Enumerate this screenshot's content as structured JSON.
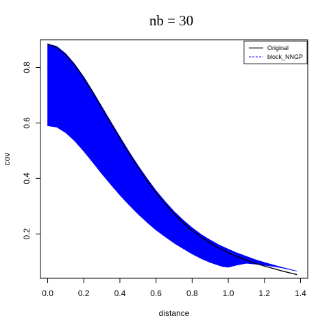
{
  "chart_data": {
    "type": "line",
    "title": "nb  =  30",
    "xlabel": "distance",
    "ylabel": "cov",
    "xlim": [
      -0.04,
      1.44
    ],
    "ylim": [
      0.04,
      0.9
    ],
    "xticks": [
      0.0,
      0.2,
      0.4,
      0.6,
      0.8,
      1.0,
      1.2,
      1.4
    ],
    "xtick_labels": [
      "0.0",
      "0.2",
      "0.4",
      "0.6",
      "0.8",
      "1.0",
      "1.2",
      "1.4"
    ],
    "yticks": [
      0.2,
      0.4,
      0.6,
      0.8
    ],
    "ytick_labels": [
      "0.2",
      "0.4",
      "0.6",
      "0.8"
    ],
    "grid": false,
    "legend_position": "top-right",
    "colors": {
      "original": "#000000",
      "block": "#0000ff"
    },
    "series": [
      {
        "name": "Original",
        "style": "solid",
        "color": "#000000",
        "x": [
          0.0,
          0.05,
          0.1,
          0.15,
          0.2,
          0.25,
          0.3,
          0.35,
          0.4,
          0.45,
          0.5,
          0.55,
          0.6,
          0.65,
          0.7,
          0.75,
          0.8,
          0.85,
          0.9,
          0.95,
          1.0,
          1.05,
          1.1,
          1.15,
          1.2,
          1.25,
          1.3,
          1.35,
          1.38
        ],
        "y": [
          0.885,
          0.872,
          0.846,
          0.808,
          0.762,
          0.71,
          0.655,
          0.6,
          0.545,
          0.491,
          0.44,
          0.392,
          0.348,
          0.308,
          0.272,
          0.24,
          0.212,
          0.188,
          0.167,
          0.148,
          0.132,
          0.118,
          0.105,
          0.094,
          0.084,
          0.075,
          0.066,
          0.058,
          0.053
        ]
      },
      {
        "name": "block_NNGP",
        "style": "dashed",
        "color": "#0000ff",
        "band_x": [
          0.0,
          0.05,
          0.1,
          0.15,
          0.2,
          0.25,
          0.3,
          0.35,
          0.4,
          0.45,
          0.5,
          0.55,
          0.6,
          0.65,
          0.7,
          0.75,
          0.8,
          0.85,
          0.9,
          0.95,
          0.97,
          1.0,
          1.05,
          1.1,
          1.15,
          1.2,
          1.25,
          1.3,
          1.35,
          1.38
        ],
        "band_upper": [
          0.885,
          0.876,
          0.85,
          0.812,
          0.766,
          0.714,
          0.659,
          0.604,
          0.55,
          0.497,
          0.447,
          0.4,
          0.356,
          0.317,
          0.281,
          0.25,
          0.222,
          0.198,
          0.178,
          0.16,
          0.154,
          0.145,
          0.131,
          0.119,
          0.107,
          0.097,
          0.088,
          0.079,
          0.071,
          0.066
        ],
        "band_lower": [
          0.59,
          0.585,
          0.565,
          0.535,
          0.498,
          0.458,
          0.417,
          0.378,
          0.34,
          0.305,
          0.272,
          0.242,
          0.214,
          0.19,
          0.167,
          0.147,
          0.128,
          0.111,
          0.097,
          0.086,
          0.082,
          0.08,
          0.088,
          0.094,
          0.091,
          0.087,
          0.083,
          0.077,
          0.07,
          0.066
        ]
      }
    ]
  }
}
